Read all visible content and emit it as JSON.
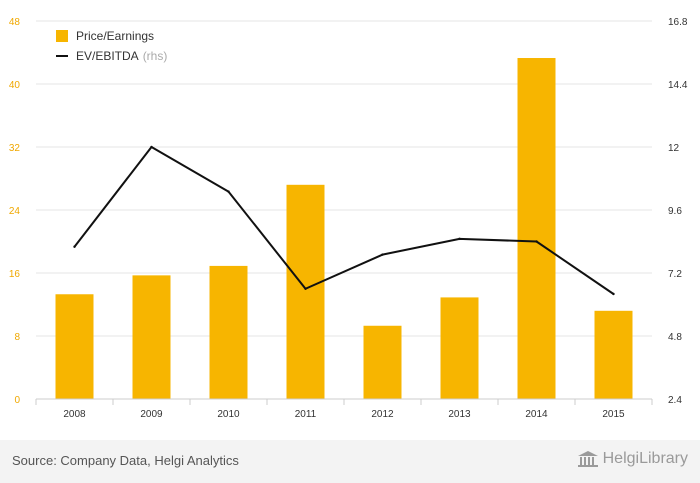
{
  "chart_data": {
    "type": "bar",
    "categories": [
      "2008",
      "2009",
      "2010",
      "2011",
      "2012",
      "2013",
      "2014",
      "2015"
    ],
    "series": [
      {
        "name": "Price/Earnings",
        "type": "bar",
        "axis": "left",
        "color": "#f7b500",
        "values": [
          13.3,
          15.7,
          16.9,
          27.2,
          9.3,
          12.9,
          43.3,
          11.2
        ]
      },
      {
        "name": "EV/EBITDA",
        "type": "line",
        "axis": "right",
        "color": "#111111",
        "values": [
          8.2,
          12.0,
          10.3,
          6.6,
          7.9,
          8.5,
          8.4,
          6.4
        ]
      }
    ],
    "left_axis": {
      "ticks": [
        "0",
        "8",
        "16",
        "24",
        "32",
        "40",
        "48"
      ],
      "range": [
        0,
        48
      ],
      "tick_color": "#f0a800"
    },
    "right_axis": {
      "ticks": [
        "2.4",
        "4.8",
        "7.2",
        "9.6",
        "12",
        "14.4",
        "16.8"
      ],
      "range": [
        2.4,
        16.8
      ]
    },
    "legend": {
      "position": "top-left",
      "rhs_note": "(rhs)"
    },
    "grid": "horizontal"
  },
  "footer": {
    "source": "Source: Company Data, Helgi Analytics",
    "brand": "HelgiLibrary"
  }
}
